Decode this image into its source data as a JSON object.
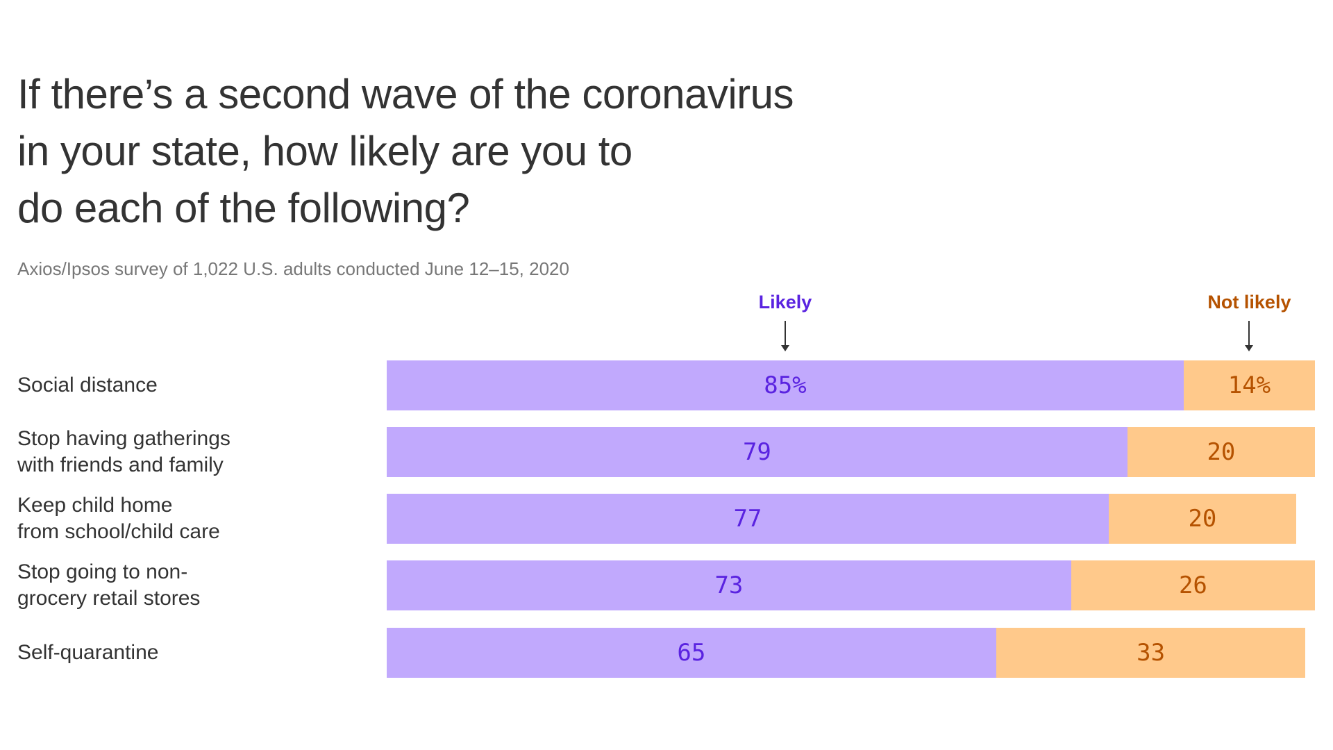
{
  "chart_data": {
    "type": "bar",
    "stacked": true,
    "orientation": "horizontal",
    "title": [
      "If there’s a second wave of the coronavirus",
      "in your state, how likely are you to",
      "do each of the following?"
    ],
    "subtitle": "Axios/Ipsos survey of 1,022 U.S. adults conducted June 12–15, 2020",
    "categories": [
      [
        "Social distance"
      ],
      [
        "Stop having gatherings",
        "with friends and family"
      ],
      [
        "Keep child home",
        "from school/child care"
      ],
      [
        "Stop going to non-",
        "grocery retail stores"
      ],
      [
        "Self-quarantine"
      ]
    ],
    "series": [
      {
        "name": "Likely",
        "values": [
          85,
          79,
          77,
          73,
          65
        ],
        "labels": [
          "85%",
          "79",
          "77",
          "73",
          "65"
        ],
        "color": "#c1a9fd",
        "text_color": "#5a23e0"
      },
      {
        "name": "Not likely",
        "values": [
          14,
          20,
          20,
          26,
          33
        ],
        "labels": [
          "14%",
          "20",
          "20",
          "26",
          "33"
        ],
        "color": "#ffc98b",
        "text_color": "#b55200"
      }
    ],
    "xlim": [
      0,
      99
    ],
    "grid": false,
    "legend": "top, with arrows"
  }
}
